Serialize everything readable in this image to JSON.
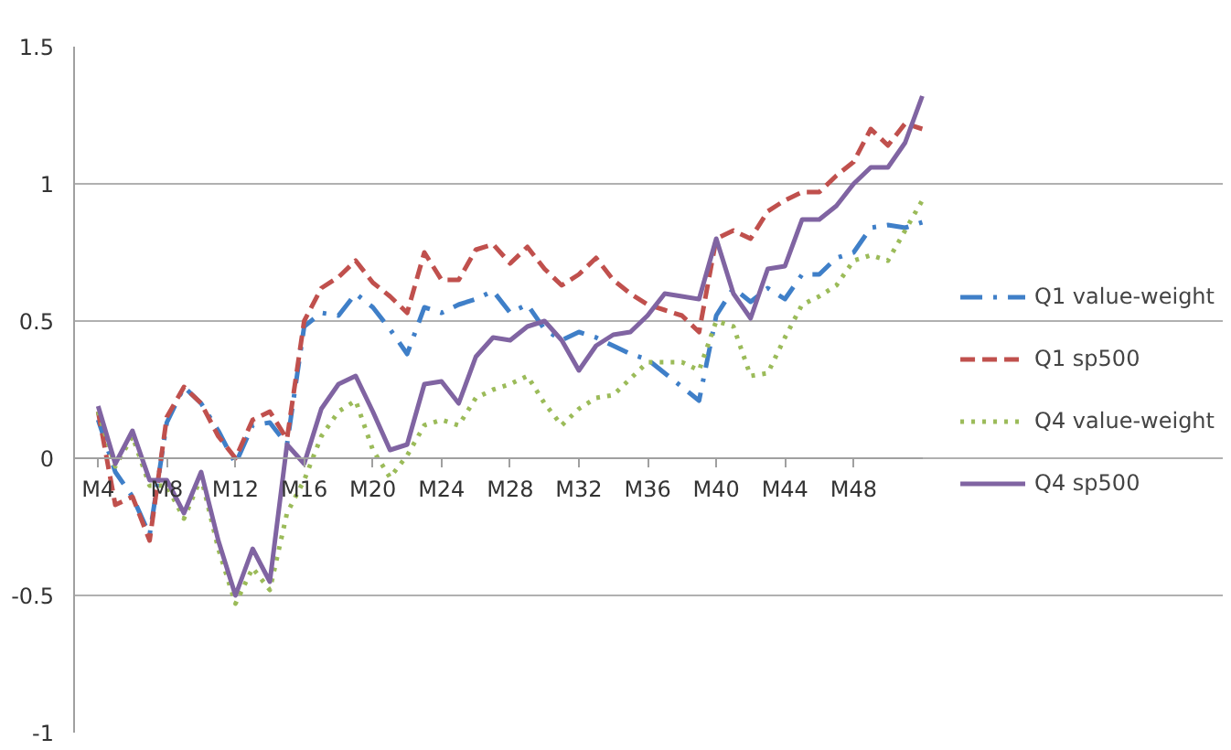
{
  "chart_data": {
    "type": "line",
    "categories": [
      "M4",
      null,
      null,
      null,
      "M8",
      null,
      null,
      null,
      "M12",
      null,
      null,
      null,
      "M16",
      null,
      null,
      null,
      "M20",
      null,
      null,
      null,
      "M24",
      null,
      null,
      null,
      "M28",
      null,
      null,
      null,
      "M32",
      null,
      null,
      null,
      "M36",
      null,
      null,
      null,
      "M40",
      null,
      null,
      null,
      "M44",
      null,
      null,
      null,
      "M48",
      null,
      null,
      null,
      null
    ],
    "series": [
      {
        "name": "Q1 value-weight",
        "color": "#3f7fc8",
        "line_style": "dashdot",
        "values": [
          0.14,
          -0.05,
          -0.14,
          -0.28,
          0.13,
          0.26,
          0.2,
          0.1,
          -0.02,
          0.12,
          0.13,
          0.05,
          0.48,
          0.53,
          0.52,
          0.6,
          0.55,
          0.47,
          0.38,
          0.55,
          0.53,
          0.56,
          0.58,
          0.61,
          0.53,
          0.56,
          0.47,
          0.43,
          0.46,
          0.44,
          0.41,
          0.38,
          0.36,
          0.31,
          0.26,
          0.21,
          0.52,
          0.62,
          0.57,
          0.62,
          0.58,
          0.67,
          0.67,
          0.73,
          0.75,
          0.84,
          0.85,
          0.84,
          0.86
        ]
      },
      {
        "name": "Q1 sp500",
        "color": "#c0504d",
        "line_style": "dashed",
        "values": [
          0.17,
          -0.17,
          -0.14,
          -0.3,
          0.15,
          0.26,
          0.2,
          0.08,
          0.0,
          0.14,
          0.17,
          0.07,
          0.5,
          0.62,
          0.66,
          0.72,
          0.64,
          0.59,
          0.53,
          0.75,
          0.65,
          0.65,
          0.76,
          0.78,
          0.71,
          0.77,
          0.69,
          0.63,
          0.67,
          0.73,
          0.65,
          0.6,
          0.56,
          0.54,
          0.52,
          0.46,
          0.8,
          0.83,
          0.8,
          0.9,
          0.94,
          0.97,
          0.97,
          1.03,
          1.08,
          1.2,
          1.14,
          1.22,
          1.2
        ]
      },
      {
        "name": "Q4 value-weight",
        "color": "#9bbb59",
        "line_style": "dotted",
        "values": [
          0.17,
          -0.03,
          0.08,
          -0.1,
          -0.1,
          -0.22,
          -0.07,
          -0.33,
          -0.53,
          -0.4,
          -0.48,
          -0.2,
          -0.08,
          0.08,
          0.17,
          0.21,
          0.03,
          -0.07,
          0.01,
          0.12,
          0.14,
          0.12,
          0.22,
          0.25,
          0.27,
          0.3,
          0.2,
          0.12,
          0.18,
          0.22,
          0.23,
          0.29,
          0.35,
          0.35,
          0.35,
          0.32,
          0.5,
          0.48,
          0.3,
          0.31,
          0.44,
          0.56,
          0.59,
          0.63,
          0.72,
          0.74,
          0.72,
          0.83,
          0.94
        ]
      },
      {
        "name": "Q4 sp500",
        "color": "#8064a2",
        "line_style": "solid",
        "values": [
          0.19,
          -0.02,
          0.1,
          -0.08,
          -0.08,
          -0.2,
          -0.05,
          -0.3,
          -0.5,
          -0.33,
          -0.45,
          0.05,
          -0.02,
          0.18,
          0.27,
          0.3,
          0.17,
          0.03,
          0.05,
          0.27,
          0.28,
          0.2,
          0.37,
          0.44,
          0.43,
          0.48,
          0.5,
          0.43,
          0.32,
          0.41,
          0.45,
          0.46,
          0.52,
          0.6,
          0.59,
          0.58,
          0.8,
          0.6,
          0.51,
          0.69,
          0.7,
          0.87,
          0.87,
          0.92,
          1.0,
          1.06,
          1.06,
          1.15,
          1.32
        ]
      }
    ],
    "ylim": [
      -1,
      1.5
    ],
    "yticks": [
      -1,
      -0.5,
      0,
      0.5,
      1,
      1.5
    ],
    "grid": "y",
    "legend": "right"
  }
}
